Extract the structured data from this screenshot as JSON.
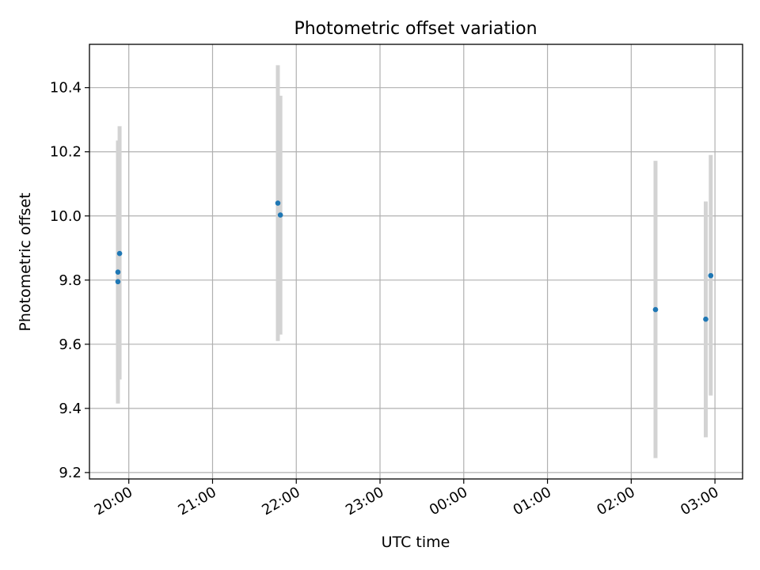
{
  "chart_data": {
    "type": "scatter",
    "title": "Photometric offset variation",
    "xlabel": "UTC time",
    "ylabel": "Photometric offset",
    "x_tick_labels": [
      "20:00",
      "21:00",
      "22:00",
      "23:00",
      "00:00",
      "01:00",
      "02:00",
      "03:00"
    ],
    "y_tick_labels": [
      "9.2",
      "9.4",
      "9.6",
      "9.8",
      "10.0",
      "10.2",
      "10.4"
    ],
    "x_ticks_hours": [
      20,
      21,
      22,
      23,
      24,
      25,
      26,
      27
    ],
    "y_ticks": [
      9.2,
      9.4,
      9.6,
      9.8,
      10.0,
      10.2,
      10.4
    ],
    "xlim_hours": [
      19.53,
      27.33
    ],
    "ylim": [
      9.18,
      10.535
    ],
    "grid": true,
    "series": [
      {
        "color": "#1f77b4",
        "errorbar_color": "#d3d3d3",
        "points": [
          {
            "time": "19:52",
            "hour": 19.87,
            "value": 9.825,
            "low": 9.415,
            "high": 10.235
          },
          {
            "time": "19:52",
            "hour": 19.87,
            "value": 9.795,
            "low": 9.48,
            "high": 10.11
          },
          {
            "time": "19:53",
            "hour": 19.89,
            "value": 9.883,
            "low": 9.49,
            "high": 10.28
          },
          {
            "time": "21:47",
            "hour": 21.78,
            "value": 10.04,
            "low": 9.61,
            "high": 10.47
          },
          {
            "time": "21:49",
            "hour": 21.81,
            "value": 10.003,
            "low": 9.63,
            "high": 10.375
          },
          {
            "time": "02:18",
            "hour": 26.29,
            "value": 9.708,
            "low": 9.245,
            "high": 10.172
          },
          {
            "time": "02:53",
            "hour": 26.89,
            "value": 9.678,
            "low": 9.31,
            "high": 10.045
          },
          {
            "time": "02:57",
            "hour": 26.95,
            "value": 9.814,
            "low": 9.44,
            "high": 10.19
          }
        ]
      }
    ]
  }
}
